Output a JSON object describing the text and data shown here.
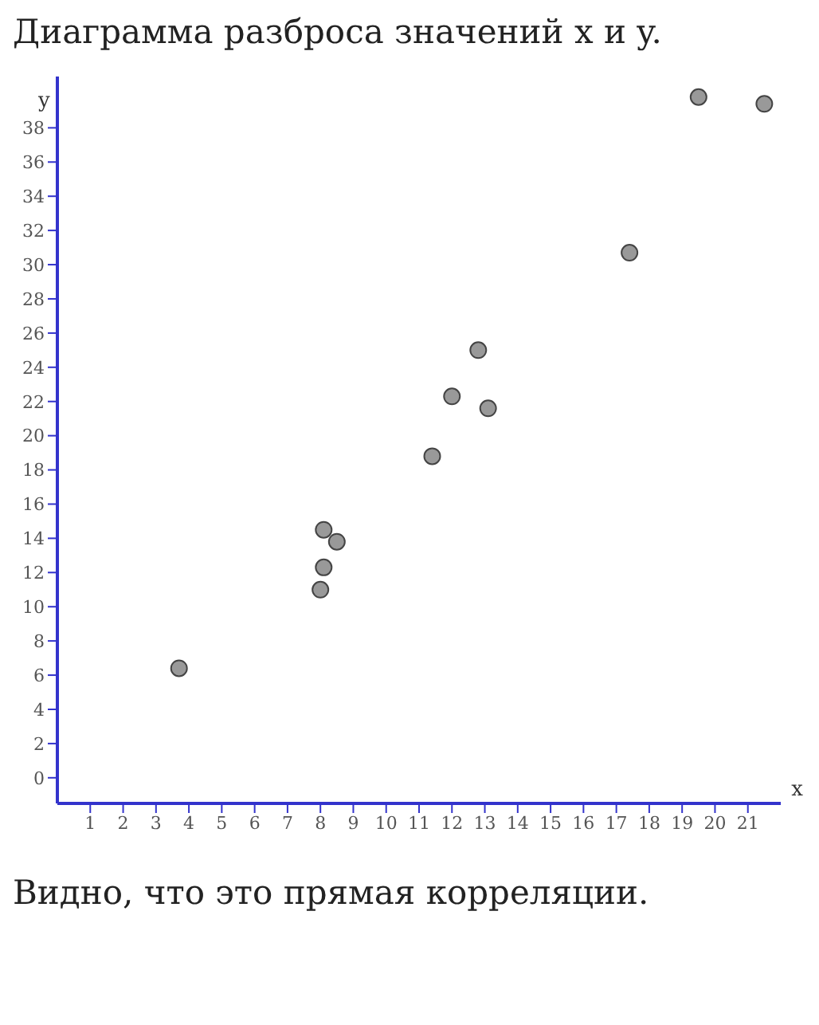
{
  "chart_data": {
    "type": "scatter",
    "title": "Диаграмма разброса значений x и y.",
    "xlabel": "x",
    "ylabel": "y",
    "x": [
      3.7,
      8.0,
      8.1,
      8.1,
      8.5,
      11.4,
      12.0,
      12.8,
      13.1,
      17.4,
      19.5,
      21.5
    ],
    "series": [
      {
        "color": "#999999",
        "values": [
          6.4,
          11.0,
          12.3,
          14.5,
          13.8,
          18.8,
          22.3,
          25.0,
          21.6,
          30.7,
          39.8,
          39.4
        ]
      }
    ],
    "xlim": [
      0,
      22
    ],
    "ylim": [
      -1.5,
      41
    ],
    "xticks": [
      1,
      2,
      3,
      4,
      5,
      6,
      7,
      8,
      9,
      10,
      11,
      12,
      13,
      14,
      15,
      16,
      17,
      18,
      19,
      20,
      21
    ],
    "yticks": [
      0,
      2,
      4,
      6,
      8,
      10,
      12,
      14,
      16,
      18,
      20,
      22,
      24,
      26,
      28,
      30,
      32,
      34,
      36,
      38
    ],
    "grid": false,
    "marker": "circle",
    "annotations": [
      "Видно, что это прямая корреляции."
    ]
  }
}
